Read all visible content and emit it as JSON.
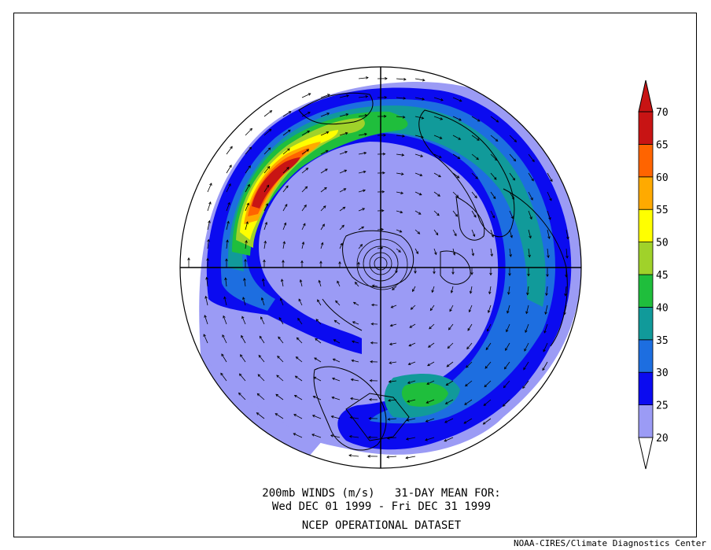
{
  "caption": {
    "line1": "200mb WINDS (m/s)   31-DAY MEAN FOR:",
    "line2": "Wed DEC 01 1999 - Fri DEC 31 1999",
    "line3": "NCEP OPERATIONAL DATASET"
  },
  "credit": "NOAA-CIRES/Climate Diagnostics Center",
  "colorbar": {
    "levels": [
      "20",
      "25",
      "30",
      "35",
      "40",
      "45",
      "50",
      "55",
      "60",
      "65",
      "70"
    ],
    "colors": [
      "#ffffff",
      "#9b9bf5",
      "#0b0bf0",
      "#1d6ee0",
      "#119a9a",
      "#1fbe3c",
      "#a0d22a",
      "#ffff00",
      "#ffaa00",
      "#ff6400",
      "#c81414"
    ]
  },
  "map": {
    "projection": "north polar stereographic",
    "variable": "wind speed with vectors"
  }
}
